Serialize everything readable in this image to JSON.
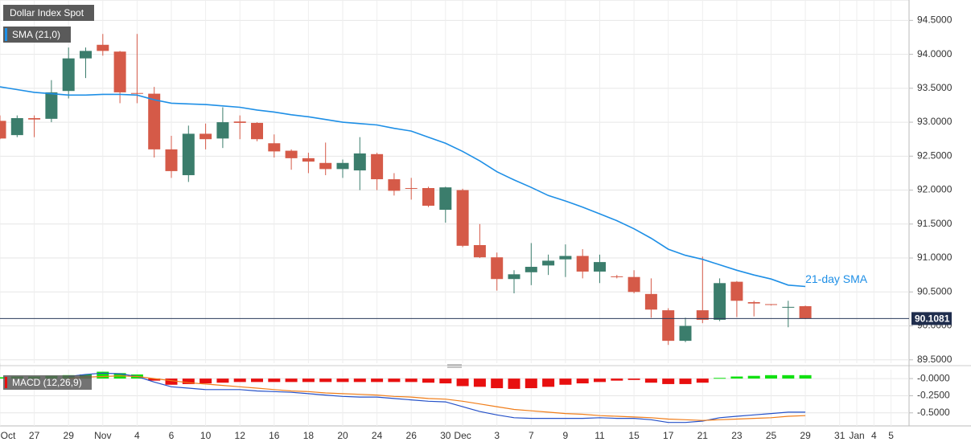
{
  "chart_data": [
    {
      "type": "candlestick",
      "title": "Dollar Index Spot",
      "annotation": "21-day SMA",
      "categories": [
        "Oct",
        null,
        "27",
        null,
        "29",
        null,
        "Nov",
        null,
        "4",
        null,
        "6",
        null,
        "10",
        null,
        "12",
        null,
        "16",
        null,
        "18",
        null,
        "20",
        null,
        "24",
        null,
        "26",
        null,
        "30",
        "Dec",
        null,
        "3",
        null,
        "7",
        null,
        "9",
        null,
        "11",
        null,
        "15",
        null,
        "17",
        null,
        "21",
        null,
        "23",
        null,
        "25",
        null,
        "29",
        null,
        "31",
        "Jan",
        "4",
        "5"
      ],
      "open": [
        93.02,
        92.81,
        93.06,
        93.05,
        93.46,
        93.94,
        94.14,
        94.04,
        93.43,
        93.42,
        92.6,
        92.22,
        92.83,
        92.76,
        93.01,
        92.99,
        92.69,
        92.58,
        92.47,
        92.4,
        92.31,
        92.29,
        92.53,
        92.16,
        92.03,
        92.03,
        91.71,
        92.0,
        91.19,
        91.01,
        90.69,
        90.79,
        90.89,
        90.98,
        91.03,
        90.8,
        90.73,
        90.72,
        90.47,
        90.23,
        89.78,
        90.23,
        90.09,
        90.65,
        90.35,
        90.32,
        90.27,
        90.29,
        null,
        null,
        null,
        null,
        null
      ],
      "high": [
        93.1,
        93.1,
        93.1,
        93.62,
        94.1,
        94.1,
        94.3,
        94.05,
        94.3,
        93.52,
        92.8,
        92.95,
        92.98,
        93.22,
        93.1,
        93.0,
        92.82,
        92.6,
        92.55,
        92.7,
        92.45,
        92.78,
        92.55,
        92.25,
        92.18,
        92.05,
        92.05,
        92.02,
        91.5,
        91.08,
        90.82,
        91.22,
        91.05,
        91.2,
        91.13,
        91.05,
        90.75,
        90.82,
        90.7,
        90.26,
        90.12,
        91.02,
        90.7,
        90.66,
        90.37,
        90.32,
        90.37,
        90.3,
        null,
        null,
        null,
        null,
        null
      ],
      "low": [
        92.75,
        92.78,
        92.78,
        93.0,
        93.35,
        93.65,
        93.98,
        93.28,
        93.28,
        92.48,
        92.18,
        92.12,
        92.6,
        92.62,
        92.75,
        92.72,
        92.48,
        92.3,
        92.25,
        92.22,
        92.18,
        92.0,
        92.0,
        91.92,
        91.86,
        91.75,
        91.52,
        91.16,
        91.0,
        90.52,
        90.48,
        90.6,
        90.75,
        90.72,
        90.7,
        90.63,
        90.7,
        90.48,
        90.12,
        89.72,
        89.76,
        90.04,
        90.07,
        90.13,
        90.14,
        90.3,
        89.98,
        90.1,
        null,
        null,
        null,
        null,
        null
      ],
      "close": [
        92.76,
        93.06,
        93.04,
        93.44,
        93.94,
        94.05,
        94.05,
        93.44,
        93.42,
        92.6,
        92.28,
        92.83,
        92.75,
        93.0,
        92.99,
        92.75,
        92.57,
        92.47,
        92.42,
        92.31,
        92.4,
        92.54,
        92.16,
        91.99,
        92.02,
        91.77,
        92.04,
        91.18,
        91.01,
        90.69,
        90.76,
        90.87,
        90.96,
        91.03,
        90.8,
        90.94,
        90.72,
        90.5,
        90.24,
        89.78,
        90.0,
        90.09,
        90.63,
        90.37,
        90.33,
        90.31,
        90.28,
        90.11,
        null,
        null,
        null,
        null,
        null
      ],
      "up_color": "#3b7d6c",
      "down_color": "#d55a48",
      "series": [
        {
          "name": "SMA (21,0)",
          "color": "#1e8fe6",
          "values": [
            93.52,
            93.48,
            93.44,
            93.42,
            93.4,
            93.4,
            93.41,
            93.41,
            93.4,
            93.33,
            93.28,
            93.27,
            93.26,
            93.24,
            93.22,
            93.18,
            93.15,
            93.11,
            93.08,
            93.04,
            93.0,
            92.98,
            92.96,
            92.91,
            92.87,
            92.78,
            92.69,
            92.57,
            92.43,
            92.27,
            92.15,
            92.04,
            91.92,
            91.84,
            91.75,
            91.65,
            91.55,
            91.43,
            91.29,
            91.13,
            91.04,
            90.98,
            90.9,
            90.82,
            90.75,
            90.69,
            90.6,
            90.58,
            null,
            null,
            null,
            null,
            null
          ]
        }
      ],
      "current_price": 90.1081,
      "ylim": [
        89.45,
        94.8
      ],
      "yticks": [
        {
          "value": 89.5,
          "label": "89.5000"
        },
        {
          "value": 90,
          "label": "90.0000"
        },
        {
          "value": 90.5,
          "label": "90.5000"
        },
        {
          "value": 91,
          "label": "91.0000"
        },
        {
          "value": 91.5,
          "label": "91.5000"
        },
        {
          "value": 92,
          "label": "92.0000"
        },
        {
          "value": 92.5,
          "label": "92.5000"
        },
        {
          "value": 93,
          "label": "93.0000"
        },
        {
          "value": 93.5,
          "label": "93.5000"
        },
        {
          "value": 94,
          "label": "94.0000"
        },
        {
          "value": 94.5,
          "label": "94.5000"
        }
      ],
      "grid": true
    },
    {
      "type": "macd",
      "title": "MACD (12,26,9)",
      "histogram": [
        0.02,
        0.03,
        0.03,
        0.04,
        0.05,
        0.06,
        0.1,
        0.08,
        0.06,
        -0.03,
        -0.09,
        -0.08,
        -0.07,
        -0.06,
        -0.05,
        -0.05,
        -0.05,
        -0.05,
        -0.05,
        -0.05,
        -0.05,
        -0.05,
        -0.05,
        -0.05,
        -0.05,
        -0.06,
        -0.07,
        -0.11,
        -0.12,
        -0.14,
        -0.15,
        -0.14,
        -0.12,
        -0.09,
        -0.07,
        -0.05,
        -0.03,
        -0.02,
        -0.06,
        -0.08,
        -0.08,
        -0.06,
        0.01,
        0.03,
        0.04,
        0.05,
        0.05,
        0.05,
        null,
        null,
        null,
        null,
        null
      ],
      "up_color": "#11e011",
      "down_color": "#e81010",
      "series": [
        {
          "color": "#2450c8",
          "values": [
            null,
            null,
            null,
            null,
            0.03,
            0.06,
            0.08,
            0.07,
            0.03,
            -0.05,
            -0.12,
            -0.14,
            -0.16,
            -0.16,
            -0.16,
            -0.18,
            -0.19,
            -0.2,
            -0.22,
            -0.24,
            -0.26,
            -0.27,
            -0.27,
            -0.29,
            -0.31,
            -0.33,
            -0.34,
            -0.41,
            -0.48,
            -0.53,
            -0.57,
            -0.58,
            -0.58,
            -0.58,
            -0.58,
            -0.57,
            -0.58,
            -0.58,
            -0.6,
            -0.64,
            -0.64,
            -0.62,
            -0.57,
            -0.55,
            -0.53,
            -0.51,
            -0.49,
            -0.49,
            null,
            null,
            null,
            null,
            null
          ]
        },
        {
          "color": "#f07d19",
          "values": [
            null,
            null,
            null,
            null,
            0.0,
            0.02,
            0.03,
            0.04,
            0.03,
            0.0,
            -0.03,
            -0.06,
            -0.08,
            -0.1,
            -0.12,
            -0.14,
            -0.16,
            -0.18,
            -0.19,
            -0.21,
            -0.22,
            -0.23,
            -0.24,
            -0.26,
            -0.27,
            -0.29,
            -0.3,
            -0.33,
            -0.37,
            -0.41,
            -0.45,
            -0.47,
            -0.49,
            -0.51,
            -0.52,
            -0.54,
            -0.55,
            -0.56,
            -0.57,
            -0.59,
            -0.6,
            -0.61,
            -0.6,
            -0.59,
            -0.58,
            -0.57,
            -0.55,
            -0.54,
            null,
            null,
            null,
            null,
            null
          ]
        }
      ],
      "ylim": [
        -0.69,
        0.13
      ],
      "yticks": [
        {
          "value": 0,
          "label": "-0.0000"
        },
        {
          "value": -0.25,
          "label": "-0.2500"
        },
        {
          "value": -0.5,
          "label": "-0.5000"
        }
      ]
    }
  ]
}
